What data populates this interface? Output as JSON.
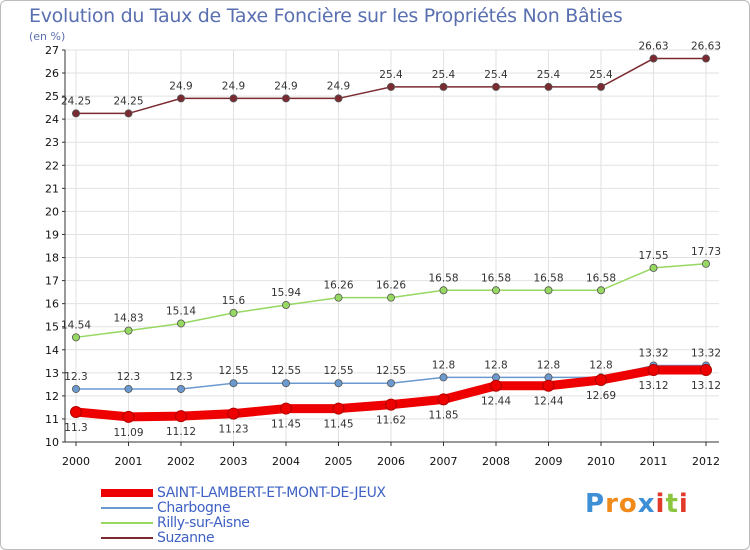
{
  "chart_data": {
    "type": "line",
    "title": "Evolution du Taux de Taxe Foncière sur les Propriétés Non Bâties",
    "ylabel": "(en %)",
    "xlabel": "",
    "categories": [
      "2000",
      "2001",
      "2002",
      "2003",
      "2004",
      "2005",
      "2006",
      "2007",
      "2008",
      "2009",
      "2010",
      "2011",
      "2012"
    ],
    "ylim": [
      10,
      27
    ],
    "yticks": [
      "10",
      "11",
      "12",
      "13",
      "14",
      "15",
      "16",
      "17",
      "18",
      "19",
      "20",
      "21",
      "22",
      "23",
      "24",
      "25",
      "26",
      "27"
    ],
    "series": [
      {
        "name": "SAINT-LAMBERT-ET-MONT-DE-JEUX",
        "color": "#ee0000",
        "values": [
          11.3,
          11.09,
          11.12,
          11.23,
          11.45,
          11.45,
          11.62,
          11.85,
          12.44,
          12.44,
          12.69,
          13.12,
          13.12
        ],
        "labels": [
          "11.3",
          "11.09",
          "11.12",
          "11.23",
          "11.45",
          "11.45",
          "11.62",
          "11.85",
          "12.44",
          "12.44",
          "12.69",
          "13.12",
          "13.12"
        ]
      },
      {
        "name": "Charbogne",
        "color": "#6a9ad0",
        "values": [
          12.3,
          12.3,
          12.3,
          12.55,
          12.55,
          12.55,
          12.55,
          12.8,
          12.8,
          12.8,
          12.8,
          13.32,
          13.32
        ],
        "labels": [
          "12.3",
          "12.3",
          "12.3",
          "12.55",
          "12.55",
          "12.55",
          "12.55",
          "12.8",
          "12.8",
          "12.8",
          "12.8",
          "13.32",
          "13.32"
        ]
      },
      {
        "name": "Rilly-sur-Aisne",
        "color": "#96d861",
        "values": [
          14.54,
          14.83,
          15.14,
          15.6,
          15.94,
          16.26,
          16.26,
          16.58,
          16.58,
          16.58,
          16.58,
          17.55,
          17.73
        ],
        "labels": [
          "14.54",
          "14.83",
          "15.14",
          "15.6",
          "15.94",
          "16.26",
          "16.26",
          "16.58",
          "16.58",
          "16.58",
          "16.58",
          "17.55",
          "17.73"
        ]
      },
      {
        "name": "Suzanne",
        "color": "#7a2a30",
        "values": [
          24.25,
          24.25,
          24.9,
          24.9,
          24.9,
          24.9,
          25.4,
          25.4,
          25.4,
          25.4,
          25.4,
          26.63,
          26.63
        ],
        "labels": [
          "24.25",
          "24.25",
          "24.9",
          "24.9",
          "24.9",
          "24.9",
          "25.4",
          "25.4",
          "25.4",
          "25.4",
          "25.4",
          "26.63",
          "26.63"
        ]
      }
    ],
    "legend": "bottom-left"
  },
  "logo": {
    "text": "Proxiti",
    "letters": [
      {
        "ch": "P",
        "color": "#3e8fd6"
      },
      {
        "ch": "r",
        "color": "#f08a1a"
      },
      {
        "ch": "o",
        "color": "#f08a1a"
      },
      {
        "ch": "x",
        "color": "#3e8fd6"
      },
      {
        "ch": "i",
        "color": "#e23a2a"
      },
      {
        "ch": "t",
        "color": "#8cc63f"
      },
      {
        "ch": "i",
        "color": "#e23a2a"
      }
    ]
  }
}
